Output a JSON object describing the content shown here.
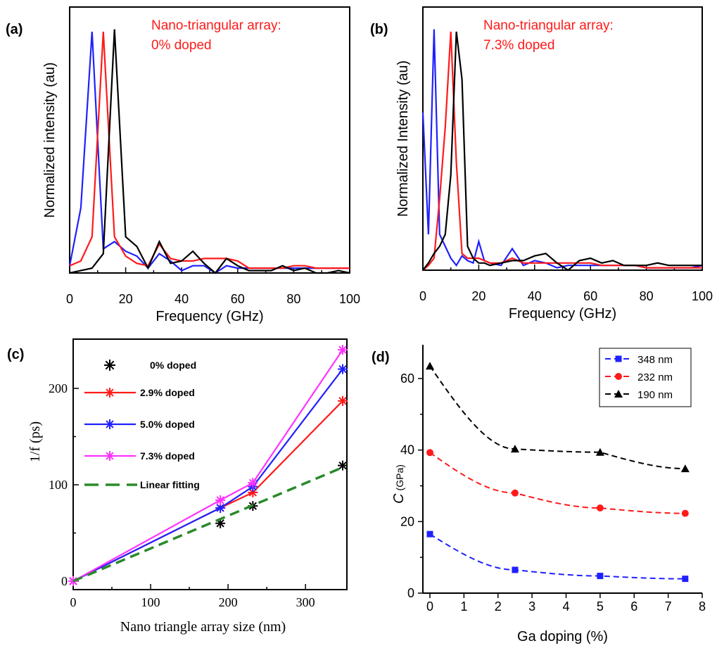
{
  "chart_data": [
    {
      "panel": "(a)",
      "type": "line",
      "annotation": [
        "Nano-triangular array:",
        "0% doped"
      ],
      "xlabel": "Frequency (GHz)",
      "ylabel": "Normalized intensity (au)",
      "xlim": [
        0,
        100
      ],
      "ylim": [
        0,
        1.05
      ],
      "xticks": [
        0,
        20,
        40,
        60,
        80,
        100
      ],
      "series": [
        {
          "color": "#2020ff",
          "x": [
            0,
            4,
            8,
            12,
            16,
            20,
            24,
            28,
            32,
            36,
            40,
            44,
            48,
            52,
            56,
            60,
            64,
            68,
            72,
            76,
            80,
            84,
            88,
            92,
            96,
            100
          ],
          "y": [
            0.03,
            0.27,
            1.0,
            0.1,
            0.13,
            0.09,
            0.07,
            0.02,
            0.08,
            0.05,
            0.01,
            0.03,
            0.03,
            0.0,
            0.03,
            0.02,
            0.02,
            0.02,
            0.02,
            0.02,
            0.02,
            0.02,
            0.02,
            0.02,
            0.02,
            0.02
          ]
        },
        {
          "color": "#ff1a1a",
          "x": [
            0,
            4,
            8,
            12,
            16,
            20,
            24,
            28,
            32,
            36,
            40,
            44,
            48,
            52,
            56,
            60,
            64,
            68,
            72,
            76,
            80,
            84,
            88,
            92,
            96,
            100
          ],
          "y": [
            0.03,
            0.05,
            0.15,
            1.0,
            0.15,
            0.07,
            0.04,
            0.03,
            0.12,
            0.06,
            0.05,
            0.05,
            0.06,
            0.06,
            0.06,
            0.05,
            0.02,
            0.02,
            0.02,
            0.02,
            0.03,
            0.03,
            0.02,
            0.02,
            0.02,
            0.02
          ]
        },
        {
          "color": "#000000",
          "x": [
            0,
            4,
            8,
            12,
            16,
            20,
            24,
            28,
            32,
            36,
            40,
            44,
            48,
            52,
            56,
            60,
            64,
            68,
            72,
            76,
            80,
            84,
            88,
            92,
            96,
            100
          ],
          "y": [
            0.0,
            0.01,
            0.02,
            0.08,
            1.01,
            0.15,
            0.11,
            0.02,
            0.13,
            0.04,
            0.05,
            0.09,
            0.04,
            0.0,
            0.06,
            0.03,
            0.01,
            0.01,
            0.01,
            0.03,
            0.01,
            0.02,
            0.0,
            0.0,
            0.01,
            0.0
          ]
        }
      ]
    },
    {
      "panel": "(b)",
      "type": "line",
      "annotation": [
        "Nano-triangular array:",
        "7.3% doped"
      ],
      "xlabel": "Frequency (GHz)",
      "ylabel": "Normalized Intensity (au)",
      "xlim": [
        0,
        100
      ],
      "ylim": [
        0,
        1.05
      ],
      "xticks": [
        0,
        20,
        40,
        60,
        80,
        100
      ],
      "series": [
        {
          "color": "#2020ff",
          "x": [
            0,
            2,
            4,
            6,
            8,
            10,
            12,
            14,
            16,
            18,
            20,
            22,
            24,
            28,
            32,
            36,
            40,
            44,
            48,
            52,
            56,
            60,
            64,
            68,
            72,
            76,
            80,
            84,
            88,
            92,
            96,
            100
          ],
          "y": [
            0.66,
            0.15,
            1.01,
            0.15,
            0.1,
            0.05,
            0.02,
            0.06,
            0.04,
            0.03,
            0.12,
            0.04,
            0.03,
            0.02,
            0.09,
            0.02,
            0.04,
            0.03,
            0.01,
            0.02,
            0.02,
            0.02,
            0.02,
            0.02,
            0.02,
            0.02,
            0.01,
            0.01,
            0.01,
            0.01,
            0.01,
            0.02
          ]
        },
        {
          "color": "#ff1a1a",
          "x": [
            0,
            2,
            4,
            6,
            8,
            10,
            12,
            14,
            16,
            18,
            20,
            22,
            24,
            28,
            32,
            36,
            40,
            44,
            48,
            52,
            56,
            60,
            64,
            68,
            72,
            76,
            80,
            84,
            88,
            92,
            96,
            100
          ],
          "y": [
            0.0,
            0.02,
            0.05,
            0.3,
            0.6,
            1.0,
            0.45,
            0.07,
            0.05,
            0.05,
            0.05,
            0.04,
            0.03,
            0.03,
            0.05,
            0.03,
            0.03,
            0.03,
            0.03,
            0.03,
            0.03,
            0.03,
            0.02,
            0.02,
            0.02,
            0.02,
            0.01,
            0.01,
            0.01,
            0.01,
            0.01,
            0.01
          ]
        },
        {
          "color": "#000000",
          "x": [
            0,
            2,
            4,
            6,
            8,
            10,
            12,
            14,
            16,
            18,
            20,
            22,
            24,
            28,
            32,
            36,
            40,
            44,
            48,
            52,
            56,
            60,
            64,
            68,
            72,
            76,
            80,
            84,
            88,
            92,
            96,
            100
          ],
          "y": [
            0.0,
            0.03,
            0.07,
            0.1,
            0.15,
            0.4,
            1.0,
            0.8,
            0.1,
            0.05,
            0.03,
            0.03,
            0.02,
            0.03,
            0.04,
            0.04,
            0.06,
            0.07,
            0.03,
            0.0,
            0.04,
            0.05,
            0.03,
            0.04,
            0.02,
            0.02,
            0.02,
            0.03,
            0.02,
            0.02,
            0.02,
            0.02
          ]
        }
      ]
    },
    {
      "panel": "(c)",
      "type": "line",
      "xlabel": "Nano triangle array size (nm)",
      "ylabel": "1/f (ps)",
      "xlim": [
        -10,
        360
      ],
      "ylim": [
        -10,
        250
      ],
      "xticks": [
        0,
        100,
        200,
        300
      ],
      "yticks": [
        0,
        100,
        200
      ],
      "legend": [
        "0% doped",
        "2.9% doped",
        "5.0% doped",
        "7.3% doped",
        "Linear fitting"
      ],
      "series": [
        {
          "name": "0% doped",
          "color": "#000000",
          "style": "markers",
          "x": [
            0,
            190,
            232,
            348
          ],
          "y": [
            0,
            60,
            78,
            120
          ]
        },
        {
          "name": "2.9% doped",
          "color": "#ff1a1a",
          "style": "line",
          "x": [
            0,
            190,
            232,
            348
          ],
          "y": [
            0,
            76,
            92,
            187
          ]
        },
        {
          "name": "5.0% doped",
          "color": "#2020ff",
          "style": "line",
          "x": [
            0,
            190,
            232,
            348
          ],
          "y": [
            0,
            76,
            98,
            220
          ]
        },
        {
          "name": "7.3% doped",
          "color": "#ff33ff",
          "style": "line",
          "x": [
            0,
            190,
            232,
            348
          ],
          "y": [
            0,
            84,
            102,
            240
          ]
        },
        {
          "name": "Linear fitting",
          "color": "#2a8a2a",
          "style": "dashed",
          "x": [
            0,
            348
          ],
          "y": [
            0,
            118
          ]
        }
      ]
    },
    {
      "panel": "(d)",
      "type": "line",
      "xlabel": "Ga doping (%)",
      "ylabel_main": "C",
      "ylabel_unit": "(GPa)",
      "xlim": [
        -0.3,
        8
      ],
      "ylim": [
        0,
        70
      ],
      "xticks": [
        0,
        1,
        2,
        3,
        4,
        5,
        6,
        7,
        8
      ],
      "yticks": [
        0,
        20,
        40,
        60
      ],
      "legend": [
        "348 nm",
        "232 nm",
        "190 nm"
      ],
      "series": [
        {
          "name": "348 nm",
          "color": "#2020ff",
          "marker": "square",
          "x": [
            0,
            2.5,
            5,
            7.5
          ],
          "y": [
            16.5,
            6.5,
            4.8,
            4.0
          ]
        },
        {
          "name": "232 nm",
          "color": "#ff1a1a",
          "marker": "circle",
          "x": [
            0,
            2.5,
            5,
            7.5
          ],
          "y": [
            39.3,
            28.0,
            23.8,
            22.3
          ]
        },
        {
          "name": "190 nm",
          "color": "#000000",
          "marker": "triangle",
          "x": [
            0,
            2.5,
            5,
            7.5
          ],
          "y": [
            63.5,
            40.3,
            39.4,
            34.8
          ]
        }
      ]
    }
  ]
}
